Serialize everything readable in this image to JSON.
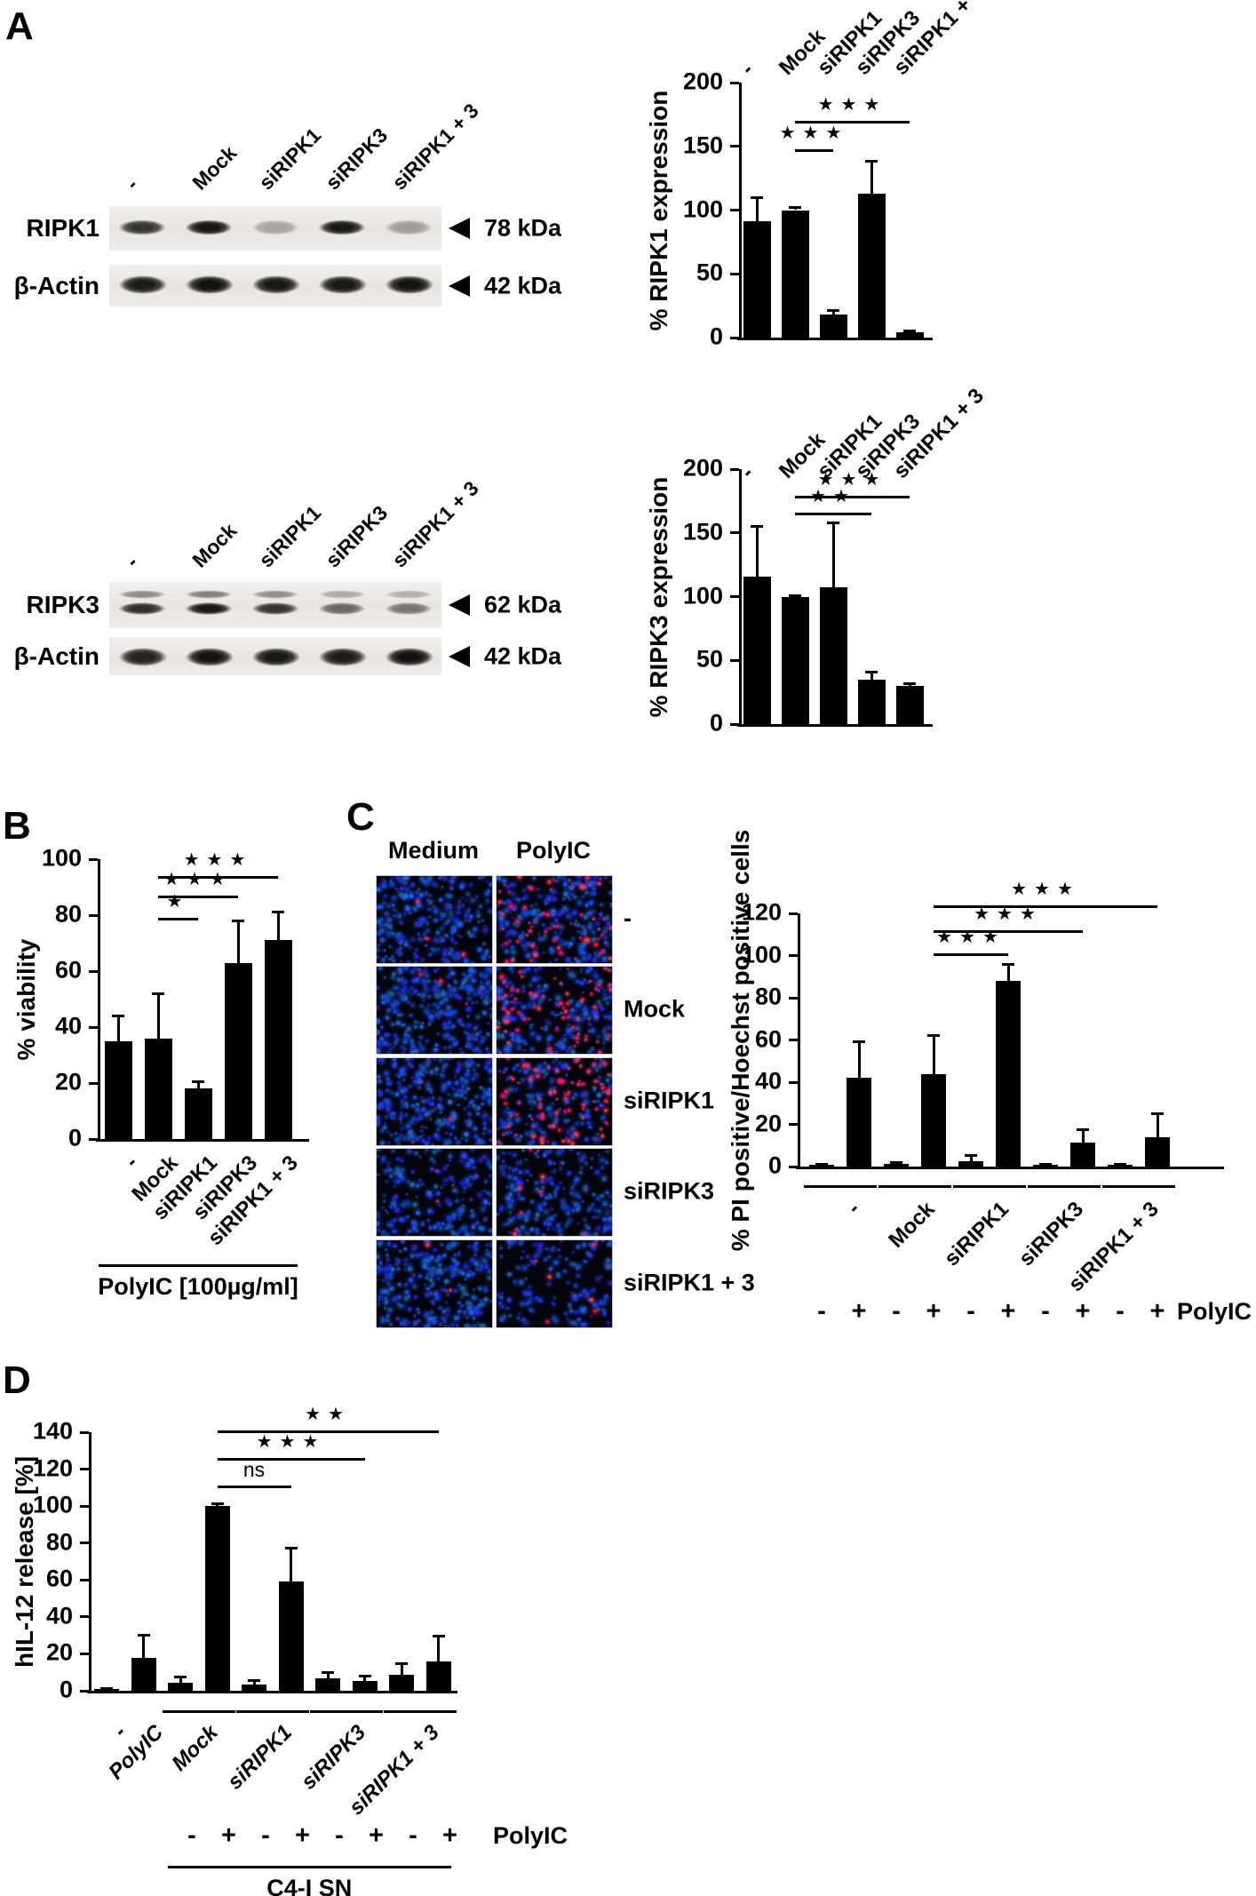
{
  "panel_letters": {
    "a": "A",
    "b": "B",
    "c": "C",
    "d": "D"
  },
  "panelA": {
    "blots": [
      {
        "id": "ripk1",
        "lanes": [
          "-",
          "Mock",
          "siRIPK1",
          "siRIPK3",
          "siRIPK1 + 3"
        ],
        "rows": [
          {
            "label": "RIPK1",
            "kda": "78 kDa",
            "style": "single",
            "bands": [
              0.82,
              0.96,
              0.3,
              0.95,
              0.34
            ]
          },
          {
            "label": "β-Actin",
            "kda": "42 kDa",
            "style": "thick",
            "bands": [
              0.94,
              0.98,
              0.95,
              0.95,
              0.97
            ]
          }
        ]
      },
      {
        "id": "ripk3",
        "lanes": [
          "-",
          "Mock",
          "siRIPK1",
          "siRIPK3",
          "siRIPK1 + 3"
        ],
        "rows": [
          {
            "label": "RIPK3",
            "kda": "62 kDa",
            "style": "doublet",
            "bands": [
              0.85,
              0.95,
              0.82,
              0.58,
              0.52
            ]
          },
          {
            "label": "β-Actin",
            "kda": "42 kDa",
            "style": "thick",
            "bands": [
              0.9,
              0.97,
              0.95,
              0.93,
              0.98
            ]
          }
        ]
      }
    ]
  },
  "microscopy": {
    "col_headers": [
      "Medium",
      "PolyIC"
    ],
    "rows": [
      {
        "label": "-",
        "cells": [
          {
            "blue": 260,
            "red": 3
          },
          {
            "blue": 230,
            "red": 60
          }
        ]
      },
      {
        "label": "Mock",
        "cells": [
          {
            "blue": 300,
            "red": 4
          },
          {
            "blue": 215,
            "red": 70
          }
        ]
      },
      {
        "label": "siRIPK1",
        "cells": [
          {
            "blue": 300,
            "red": 3
          },
          {
            "blue": 160,
            "red": 88
          }
        ]
      },
      {
        "label": "siRIPK3",
        "cells": [
          {
            "blue": 190,
            "red": 2
          },
          {
            "blue": 205,
            "red": 9
          }
        ]
      },
      {
        "label": "siRIPK1 + 3",
        "cells": [
          {
            "blue": 280,
            "red": 2
          },
          {
            "blue": 150,
            "red": 6
          }
        ]
      }
    ]
  },
  "chart_data": [
    {
      "id": "ripk1-expression",
      "type": "bar",
      "title": "",
      "xlabel": "",
      "ylabel": "% RIPK1 expression",
      "ylim": [
        0,
        200
      ],
      "yticks": [
        0,
        50,
        100,
        150,
        200
      ],
      "grid": false,
      "legend": "none",
      "groups": [
        {
          "label": "-",
          "bars": [
            {
              "value": 91,
              "err": 19
            }
          ]
        },
        {
          "label": "Mock",
          "bars": [
            {
              "value": 100,
              "err": 2
            }
          ]
        },
        {
          "label": "siRIPK1",
          "bars": [
            {
              "value": 18,
              "err": 3
            }
          ]
        },
        {
          "label": "siRIPK3",
          "bars": [
            {
              "value": 113,
              "err": 25
            }
          ]
        },
        {
          "label": "siRIPK1 + 3",
          "bars": [
            {
              "value": 4,
              "err": 1
            }
          ]
        }
      ],
      "sig": [
        {
          "from": [
            1,
            0
          ],
          "to": [
            2,
            0
          ],
          "y": 148,
          "label": "★★★"
        },
        {
          "from": [
            1,
            0
          ],
          "to": [
            4,
            0
          ],
          "y": 170,
          "label": "★★★"
        }
      ]
    },
    {
      "id": "ripk3-expression",
      "type": "bar",
      "title": "",
      "xlabel": "",
      "ylabel": "% RIPK3 expression",
      "ylim": [
        0,
        200
      ],
      "yticks": [
        0,
        50,
        100,
        150,
        200
      ],
      "grid": false,
      "legend": "none",
      "groups": [
        {
          "label": "-",
          "bars": [
            {
              "value": 116,
              "err": 39
            }
          ]
        },
        {
          "label": "Mock",
          "bars": [
            {
              "value": 100,
              "err": 1
            }
          ]
        },
        {
          "label": "siRIPK1",
          "bars": [
            {
              "value": 107,
              "err": 51
            }
          ]
        },
        {
          "label": "siRIPK3",
          "bars": [
            {
              "value": 35,
              "err": 6
            }
          ]
        },
        {
          "label": "siRIPK1 + 3",
          "bars": [
            {
              "value": 30,
              "err": 2
            }
          ]
        }
      ],
      "sig": [
        {
          "from": [
            1,
            0
          ],
          "to": [
            3,
            0
          ],
          "y": 166,
          "label": "★★"
        },
        {
          "from": [
            1,
            0
          ],
          "to": [
            4,
            0
          ],
          "y": 179,
          "label": "★★★"
        }
      ]
    },
    {
      "id": "viability",
      "type": "bar",
      "title": "",
      "xlabel": "PolyIC [100µg/ml]",
      "ylabel": "% viability",
      "ylim": [
        0,
        100
      ],
      "yticks": [
        0,
        20,
        40,
        60,
        80,
        100
      ],
      "grid": false,
      "legend": "none",
      "groups": [
        {
          "label": "-",
          "bars": [
            {
              "value": 35,
              "err": 9
            }
          ]
        },
        {
          "label": "Mock",
          "bars": [
            {
              "value": 36,
              "err": 16
            }
          ]
        },
        {
          "label": "siRIPK1",
          "bars": [
            {
              "value": 18,
              "err": 2.5
            }
          ]
        },
        {
          "label": "siRIPK3",
          "bars": [
            {
              "value": 63,
              "err": 15
            }
          ]
        },
        {
          "label": "siRIPK1 + 3",
          "bars": [
            {
              "value": 71,
              "err": 10
            }
          ]
        }
      ],
      "sig": [
        {
          "from": [
            1,
            0
          ],
          "to": [
            2,
            0
          ],
          "y": 79,
          "label": "★"
        },
        {
          "from": [
            1,
            0
          ],
          "to": [
            3,
            0
          ],
          "y": 87,
          "label": "★★★"
        },
        {
          "from": [
            1,
            0
          ],
          "to": [
            4,
            0
          ],
          "y": 94,
          "label": "★★★"
        }
      ],
      "bracket": {
        "label": "PolyIC [100µg/ml]",
        "from": 0,
        "to": 4
      }
    },
    {
      "id": "pi-positive",
      "type": "bar",
      "title": "",
      "xlabel": "PolyIC",
      "ylabel": "% PI positive/Hoechst positive cells",
      "ylim": [
        0,
        120
      ],
      "yticks": [
        0,
        20,
        40,
        60,
        80,
        100,
        120
      ],
      "grid": false,
      "legend": "none",
      "groups": [
        {
          "label": "-",
          "underline": true,
          "bars": [
            {
              "sign": "-",
              "value": 0.8,
              "err": 0.4
            },
            {
              "sign": "+",
              "value": 42,
              "err": 17
            }
          ]
        },
        {
          "label": "Mock",
          "underline": true,
          "bars": [
            {
              "sign": "-",
              "value": 1.2,
              "err": 0.5
            },
            {
              "sign": "+",
              "value": 44,
              "err": 18
            }
          ]
        },
        {
          "label": "siRIPK1",
          "underline": true,
          "bars": [
            {
              "sign": "-",
              "value": 2.5,
              "err": 2.8
            },
            {
              "sign": "+",
              "value": 88,
              "err": 8
            }
          ]
        },
        {
          "label": "siRIPK3",
          "underline": true,
          "bars": [
            {
              "sign": "-",
              "value": 0.8,
              "err": 0.4
            },
            {
              "sign": "+",
              "value": 11.5,
              "err": 6
            }
          ]
        },
        {
          "label": "siRIPK1 + 3",
          "underline": true,
          "bars": [
            {
              "sign": "-",
              "value": 0.8,
              "err": 0.4
            },
            {
              "sign": "+",
              "value": 14,
              "err": 11
            }
          ]
        }
      ],
      "sig": [
        {
          "from": [
            1,
            1
          ],
          "to": [
            2,
            1
          ],
          "y": 101,
          "label": "★★★"
        },
        {
          "from": [
            1,
            1
          ],
          "to": [
            3,
            1
          ],
          "y": 112,
          "label": "★★★"
        },
        {
          "from": [
            1,
            1
          ],
          "to": [
            4,
            1
          ],
          "y": 124,
          "label": "★★★"
        }
      ],
      "sign_row_label": "PolyIC"
    },
    {
      "id": "hil12-release",
      "type": "bar",
      "title": "",
      "xlabel": "C4-I SN",
      "ylabel": "hIL-12 release [%]",
      "ylim": [
        0,
        140
      ],
      "yticks": [
        0,
        20,
        40,
        60,
        80,
        100,
        120,
        140
      ],
      "grid": false,
      "legend": "none",
      "groups": [
        {
          "label": "-",
          "bars": [
            {
              "value": 1,
              "err": 0.4
            }
          ]
        },
        {
          "label": "PolyIC",
          "bars": [
            {
              "value": 18,
              "err": 12
            }
          ]
        },
        {
          "label": "Mock",
          "underline": true,
          "bars": [
            {
              "sign": "-",
              "value": 4.5,
              "err": 3
            },
            {
              "sign": "+",
              "value": 100,
              "err": 1.5
            }
          ]
        },
        {
          "label": "siRIPK1",
          "underline": true,
          "bars": [
            {
              "sign": "-",
              "value": 3.5,
              "err": 2
            },
            {
              "sign": "+",
              "value": 59,
              "err": 18
            }
          ]
        },
        {
          "label": "siRIPK3",
          "underline": true,
          "bars": [
            {
              "sign": "-",
              "value": 6.5,
              "err": 3.5
            },
            {
              "sign": "+",
              "value": 5.5,
              "err": 2.5
            }
          ]
        },
        {
          "label": "siRIPK1 + 3",
          "underline": true,
          "bars": [
            {
              "sign": "-",
              "value": 8.5,
              "err": 6
            },
            {
              "sign": "+",
              "value": 16,
              "err": 13.5
            }
          ]
        }
      ],
      "sig": [
        {
          "from": [
            2,
            1
          ],
          "to": [
            3,
            1
          ],
          "y": 111,
          "label": "ns"
        },
        {
          "from": [
            2,
            1
          ],
          "to": [
            4,
            1
          ],
          "y": 126,
          "label": "★★★"
        },
        {
          "from": [
            2,
            1
          ],
          "to": [
            5,
            1
          ],
          "y": 141,
          "label": "★★"
        }
      ],
      "sign_row_label": "PolyIC",
      "bracket": {
        "label": "C4-I SN",
        "from": 2,
        "to": 5
      }
    }
  ]
}
